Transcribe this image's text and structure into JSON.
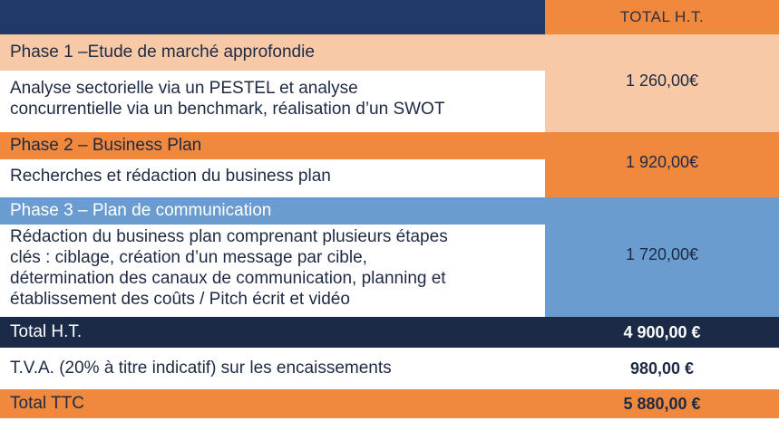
{
  "header": {
    "total_ht_label": "TOTAL H.T."
  },
  "phases": [
    {
      "title": "Phase 1 –Etude de marché approfondie",
      "lines": [
        "Analyse sectorielle via un PESTEL et analyse",
        "concurrentielle via un benchmark, réalisation d’un SWOT"
      ],
      "amount": "1 260,00€"
    },
    {
      "title": "Phase 2 – Business Plan",
      "lines": [
        "Recherches et rédaction du business plan"
      ],
      "amount": "1 920,00€"
    },
    {
      "title": "Phase 3 – Plan de communication",
      "lines": [
        "Rédaction du business plan comprenant plusieurs étapes",
        "clés : ciblage, création d’un message par cible,",
        "détermination des canaux de communication, planning et",
        "établissement des coûts / Pitch écrit et vidéo"
      ],
      "amount": "1 720,00€"
    }
  ],
  "totals": {
    "ht_label": "Total H.T.",
    "ht_value": "4 900,00 €",
    "tva_label": "T.V.A. (20% à titre indicatif) sur les encaissements",
    "tva_value": "980,00 €",
    "ttc_label": "Total TTC",
    "ttc_value": "5 880,00 €"
  },
  "colors": {
    "navy": "#1f3a66",
    "orange": "#f0883e",
    "peach": "#f7c9a6",
    "blue": "#6a9ccf",
    "dark_navy": "#1b2a47"
  }
}
